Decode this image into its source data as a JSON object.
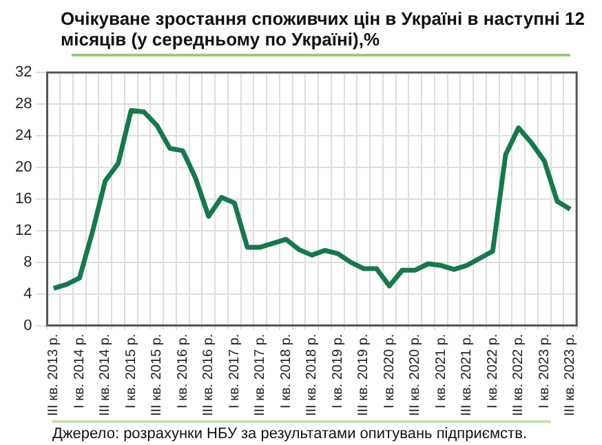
{
  "chart_data": {
    "type": "line",
    "title": "Очікуване зростання споживчих цін в Україні в наступні 12 місяців (у середньому по Україні),%",
    "categories": [
      "III кв. 2013 р.",
      null,
      "I кв. 2014 р.",
      null,
      "III кв. 2014 р.",
      null,
      "I кв. 2015 р.",
      null,
      "III кв. 2015 р.",
      null,
      "I кв. 2016 р.",
      null,
      "III кв. 2016 р.",
      null,
      "I кв. 2017 р.",
      null,
      "III кв. 2017 р.",
      null,
      "I кв. 2018 р.",
      null,
      "III кв. 2018 р.",
      null,
      "I кв. 2019 р.",
      null,
      "III кв. 2019 р.",
      null,
      "I кв. 2020 р.",
      null,
      "III кв. 2020 р.",
      null,
      "I кв. 2021 р.",
      null,
      "III кв. 2021 р.",
      null,
      "I кв. 2022 р.",
      null,
      "III кв. 2022 р.",
      null,
      "I кв. 2023 р.",
      null,
      "III кв. 2023 р."
    ],
    "series": [
      {
        "color": "#17784a",
        "values": [
          4.7,
          5.2,
          6.0,
          11.8,
          18.3,
          20.5,
          27.2,
          27.0,
          25.3,
          22.4,
          22.1,
          18.6,
          13.8,
          16.2,
          15.5,
          9.9,
          9.9,
          10.4,
          10.9,
          9.6,
          8.9,
          9.5,
          9.1,
          8.0,
          7.2,
          7.2,
          5.0,
          7.0,
          7.0,
          7.8,
          7.6,
          7.1,
          7.6,
          8.5,
          9.4,
          21.6,
          25.0,
          23.1,
          20.8,
          15.7,
          14.7
        ]
      }
    ],
    "ylim": [
      0,
      32
    ],
    "yticks": [
      0,
      4,
      8,
      12,
      16,
      20,
      24,
      28,
      32
    ],
    "grid": true,
    "legend": false,
    "marker": "none",
    "line_style": "solid",
    "annotations": [
      "Джерело: розрахунки НБУ за результатами опитувань підприємств."
    ]
  }
}
